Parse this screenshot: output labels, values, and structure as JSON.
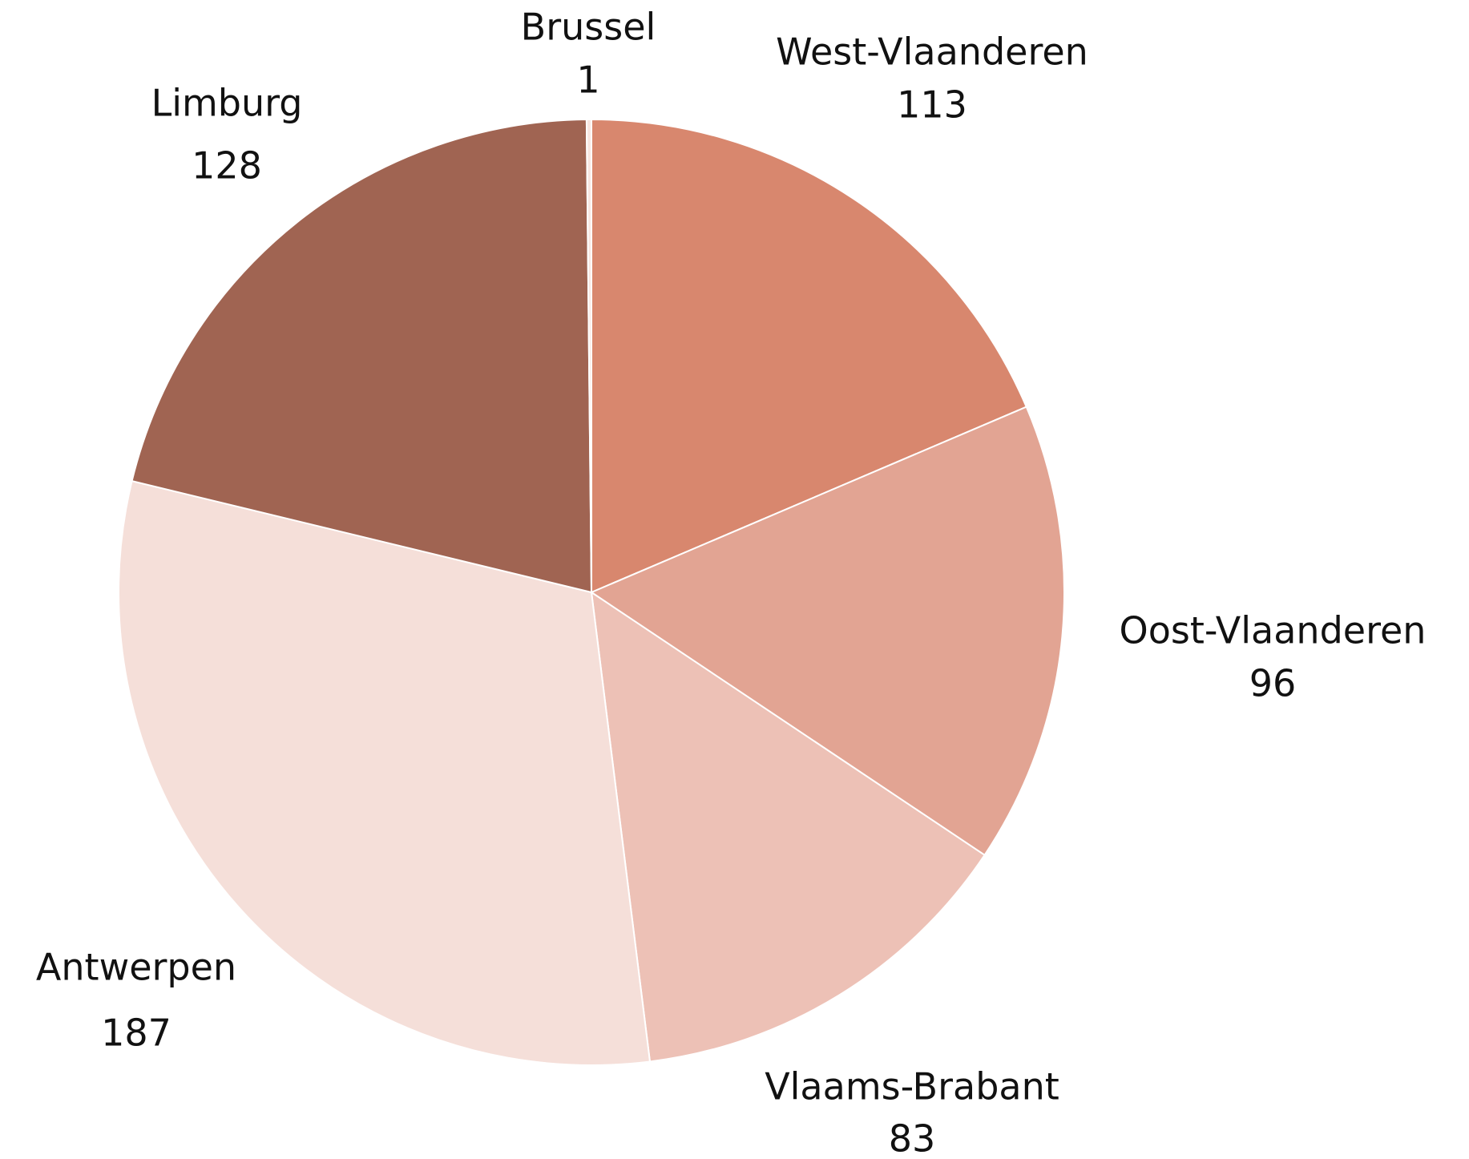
{
  "chart_data": {
    "type": "pie",
    "categories": [
      "West-Vlaanderen",
      "Oost-Vlaanderen",
      "Vlaams-Brabant",
      "Antwerpen",
      "Limburg",
      "Brussel"
    ],
    "values": [
      113,
      96,
      83,
      187,
      128,
      1
    ],
    "colors": [
      "#d8876e",
      "#e2a493",
      "#edc1b6",
      "#f5dfd9",
      "#a06452",
      "#f7e6e1"
    ]
  }
}
